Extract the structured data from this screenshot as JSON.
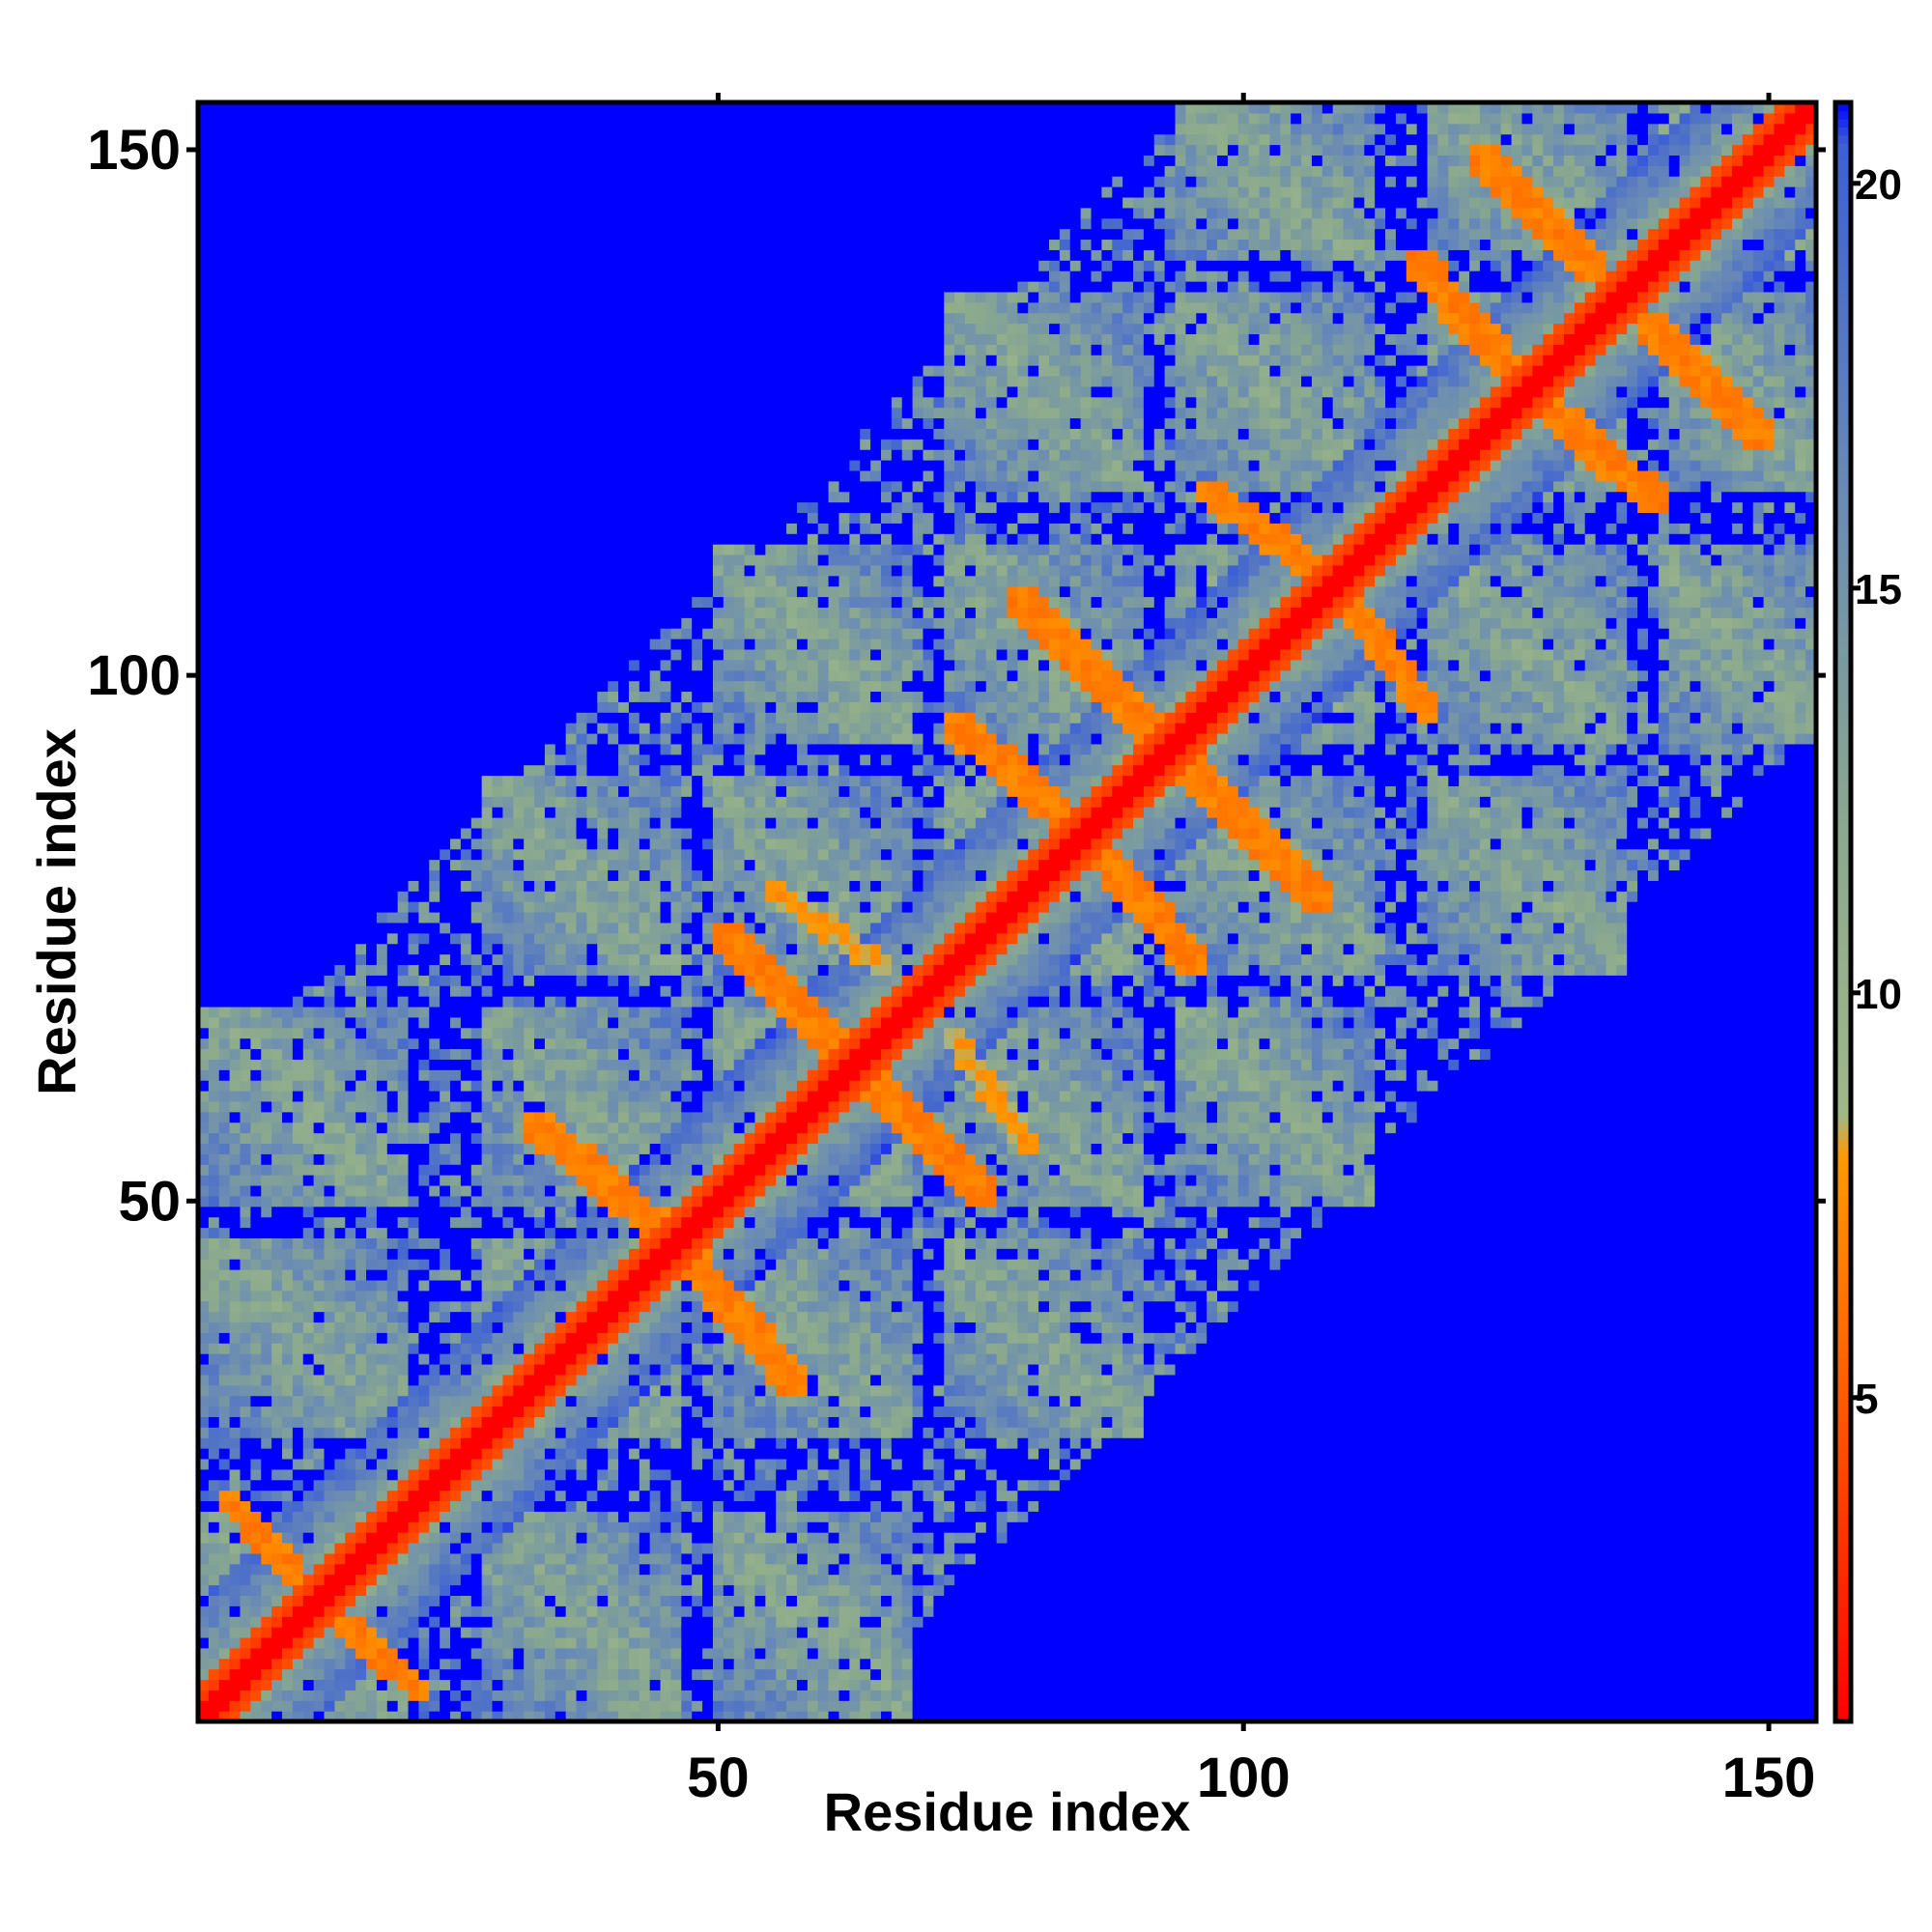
{
  "chart_data": {
    "type": "heatmap",
    "title": "",
    "xlabel": "Residue index",
    "ylabel": "Residue index",
    "n_residues": 154,
    "xlim": [
      1,
      154
    ],
    "ylim": [
      1,
      154
    ],
    "xticks": [
      50,
      100,
      150
    ],
    "yticks": [
      50,
      100,
      150
    ],
    "colorbar": {
      "ticks": [
        5,
        10,
        15,
        20
      ],
      "range": [
        1,
        21
      ],
      "stops": [
        {
          "value": 1,
          "color": "#ff0000"
        },
        {
          "value": 5,
          "color": "#ff5a00"
        },
        {
          "value": 8,
          "color": "#ff9900"
        },
        {
          "value": 8.5,
          "color": "#9fb889"
        },
        {
          "value": 12,
          "color": "#8aa98e"
        },
        {
          "value": 16,
          "color": "#6b8cb3"
        },
        {
          "value": 20.5,
          "color": "#3c5fd6"
        },
        {
          "value": 21,
          "color": "#0000ff"
        }
      ]
    },
    "structure": {
      "description_values": "distance matrix values (approx) — diagonal near 1, helical contact bands ~6-8, surrounding shells ~10-18, far regions 21 (max)",
      "diagonal_value": 1,
      "background_value": 21,
      "helix_segments": [
        [
          1,
          20
        ],
        [
          28,
          46
        ],
        [
          50,
          68
        ],
        [
          72,
          90
        ],
        [
          94,
          112
        ],
        [
          118,
          136
        ],
        [
          140,
          154
        ]
      ],
      "cross_bands": [
        {
          "i": [
            3,
            12
          ],
          "j": [
            12,
            22
          ],
          "value": 6
        },
        {
          "i": [
            32,
            46
          ],
          "j": [
            46,
            58
          ],
          "value": 6
        },
        {
          "i": [
            50,
            62
          ],
          "j": [
            64,
            76
          ],
          "value": 6
        },
        {
          "i": [
            55,
            66
          ],
          "j": [
            72,
            80
          ],
          "value": 7
        },
        {
          "i": [
            72,
            86
          ],
          "j": [
            84,
            96
          ],
          "value": 6
        },
        {
          "i": [
            78,
            92
          ],
          "j": [
            94,
            108
          ],
          "value": 6
        },
        {
          "i": [
            96,
            110
          ],
          "j": [
            108,
            118
          ],
          "value": 6
        },
        {
          "i": [
            116,
            128
          ],
          "j": [
            126,
            140
          ],
          "value": 6
        },
        {
          "i": [
            122,
            134
          ],
          "j": [
            138,
            150
          ],
          "value": 6
        }
      ]
    }
  }
}
